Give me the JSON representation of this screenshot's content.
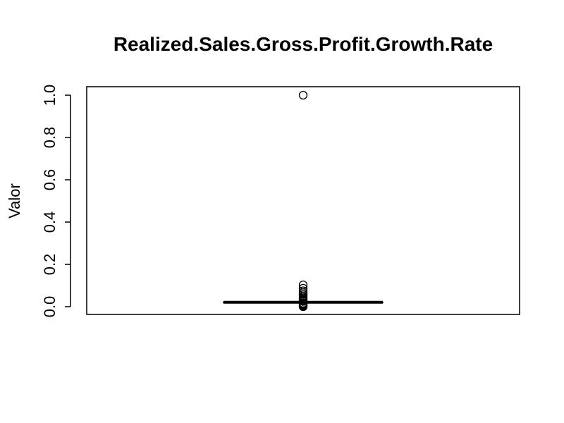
{
  "chart_data": {
    "type": "boxplot",
    "title": "Realized.Sales.Gross.Profit.Growth.Rate",
    "xlabel": "",
    "ylabel": "Valor",
    "ylim": [
      0.0,
      1.0
    ],
    "y_ticks": [
      "0.0",
      "0.2",
      "0.4",
      "0.6",
      "0.8",
      "1.0"
    ],
    "y_tick_values": [
      0.0,
      0.2,
      0.4,
      0.6,
      0.8,
      1.0
    ],
    "box": {
      "lower_whisker": 0.021,
      "q1": 0.021,
      "median": 0.021,
      "q3": 0.021,
      "upper_whisker": 0.021
    },
    "outliers": [
      1.0,
      0.103,
      0.087,
      0.075,
      0.066,
      0.058,
      0.051,
      0.045,
      0.039,
      0.034,
      0.029,
      0.025,
      0.017,
      0.013,
      0.009,
      0.005,
      0.002,
      0.0
    ],
    "grid": false,
    "color": "#000000"
  }
}
